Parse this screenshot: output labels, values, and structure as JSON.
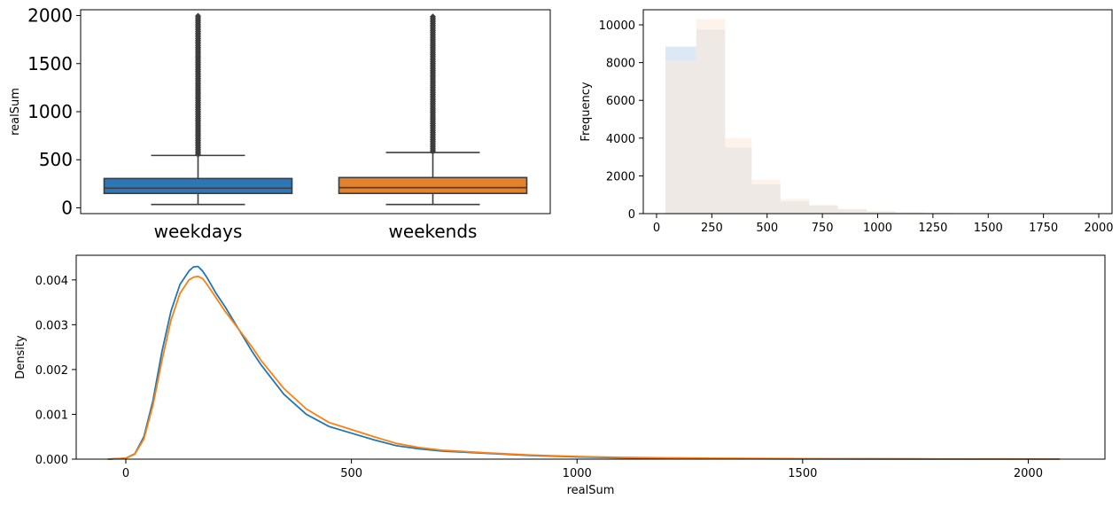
{
  "chart_data": [
    {
      "type": "box",
      "ylabel": "realSum",
      "ylim": [
        -60,
        2060
      ],
      "yticks": [
        0,
        500,
        1000,
        1500,
        2000
      ],
      "categories": [
        "weekdays",
        "weekends"
      ],
      "colors": [
        "#2f77b4",
        "#e3822b"
      ],
      "boxes": [
        {
          "name": "weekdays",
          "whisker_low": 35,
          "q1": 150,
          "median": 205,
          "q3": 305,
          "whisker_high": 545,
          "outlier_min": 555,
          "outlier_max": 2000
        },
        {
          "name": "weekends",
          "whisker_low": 35,
          "q1": 150,
          "median": 210,
          "q3": 315,
          "whisker_high": 575,
          "outlier_min": 585,
          "outlier_max": 2000
        }
      ]
    },
    {
      "type": "histogram",
      "ylabel": "Frequency",
      "xlim": [
        -60,
        2060
      ],
      "ylim": [
        0,
        10800
      ],
      "xticks": [
        0,
        250,
        500,
        750,
        1000,
        1250,
        1500,
        1750,
        2000
      ],
      "yticks": [
        0,
        2000,
        4000,
        6000,
        8000,
        10000
      ],
      "bin_edges": [
        40,
        180,
        310,
        430,
        560,
        690,
        820,
        950,
        1080,
        1210,
        1340,
        1470,
        1600,
        1730,
        1860,
        2000
      ],
      "series": [
        {
          "color": "#dce8f4",
          "values": [
            8850,
            9750,
            3500,
            1550,
            650,
            420,
            220,
            110,
            60,
            30,
            18,
            10,
            6,
            4,
            3
          ]
        },
        {
          "color": "#fde9d8",
          "values": [
            8100,
            10300,
            4000,
            1800,
            780,
            460,
            250,
            130,
            70,
            36,
            20,
            12,
            7,
            5,
            3
          ]
        }
      ]
    },
    {
      "type": "line",
      "xlabel": "realSum",
      "ylabel": "Density",
      "xlim": [
        -110,
        2170
      ],
      "ylim": [
        0,
        0.00455
      ],
      "xticks": [
        0,
        500,
        1000,
        1500,
        2000
      ],
      "yticks": [
        "0.000",
        "0.001",
        "0.002",
        "0.003",
        "0.004"
      ],
      "series": [
        {
          "color": "#1f77b4",
          "x": [
            -40,
            0,
            20,
            40,
            60,
            80,
            100,
            120,
            140,
            150,
            160,
            170,
            180,
            200,
            220,
            250,
            280,
            300,
            350,
            400,
            450,
            500,
            550,
            600,
            650,
            700,
            800,
            900,
            1000,
            1100,
            1200,
            1300,
            1500,
            1800,
            2070
          ],
          "y": [
            0,
            2e-05,
            0.00012,
            0.0005,
            0.0013,
            0.0024,
            0.0033,
            0.0039,
            0.0042,
            0.00429,
            0.0043,
            0.0042,
            0.00405,
            0.0037,
            0.0034,
            0.0029,
            0.0024,
            0.0021,
            0.00145,
            0.001,
            0.00073,
            0.00058,
            0.00043,
            0.0003,
            0.00023,
            0.00018,
            0.00013,
            8e-05,
            5e-05,
            3e-05,
            2e-05,
            1e-05,
            5e-06,
            3e-06,
            2e-06
          ]
        },
        {
          "color": "#ff7f0e",
          "x": [
            -40,
            0,
            20,
            40,
            60,
            80,
            100,
            120,
            140,
            150,
            160,
            170,
            180,
            200,
            220,
            250,
            280,
            300,
            350,
            400,
            450,
            500,
            550,
            600,
            650,
            700,
            800,
            900,
            1000,
            1100,
            1200,
            1300,
            1500,
            1800,
            2070
          ],
          "y": [
            0,
            2e-05,
            0.00011,
            0.00045,
            0.0012,
            0.0022,
            0.0031,
            0.0037,
            0.004,
            0.00406,
            0.00408,
            0.00403,
            0.0039,
            0.0036,
            0.0033,
            0.0029,
            0.0025,
            0.0022,
            0.00158,
            0.00112,
            0.00082,
            0.00066,
            0.0005,
            0.00035,
            0.00026,
            0.0002,
            0.00014,
            9e-05,
            6e-05,
            4e-05,
            3e-05,
            2e-05,
            1e-05,
            5e-06,
            3e-06
          ]
        }
      ]
    }
  ]
}
